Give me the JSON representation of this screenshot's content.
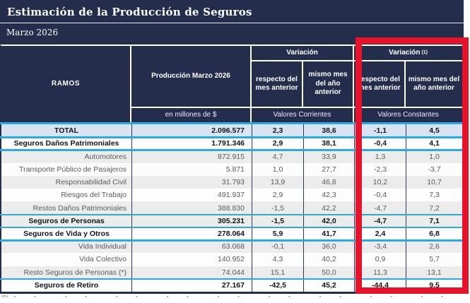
{
  "header": {
    "title": "Estimación de la Producción de Seguros",
    "subtitle": "Marzo 2026"
  },
  "table": {
    "columns": {
      "ramos": "RAMOS",
      "produccion": "Producción Marzo 2026",
      "variacion_corrientes": "Variación",
      "variacion_constantes": "Variación",
      "variacion_constantes_sup": "(1)",
      "respecto_mes_anterior": "respecto del mes anterior",
      "mismo_mes_anio_anterior": "mismo mes del año anterior",
      "unidad": "en millones de $",
      "valores_corrientes": "Valores Corrientes",
      "valores_constantes": "Valores Constantes"
    },
    "rows": [
      {
        "label": "TOTAL",
        "production": "2.096.577",
        "var_curr_prev": "2,3",
        "var_curr_yoy": "38,6",
        "var_const_prev": "-1,1",
        "var_const_yoy": "4,5",
        "style": "total",
        "shade": "blue",
        "separator_below": true
      },
      {
        "label": "Seguros Daños Patrimoniales",
        "production": "1.791.346",
        "var_curr_prev": "2,9",
        "var_curr_yoy": "38,1",
        "var_const_prev": "-0,4",
        "var_const_yoy": "4,1",
        "style": "group",
        "shade": "white",
        "separator_below": true
      },
      {
        "label": "Automotores",
        "production": "872.915",
        "var_curr_prev": "4,7",
        "var_curr_yoy": "33,9",
        "var_const_prev": "1,3",
        "var_const_yoy": "1,0",
        "style": "item",
        "shade": "gray",
        "separator_below": false
      },
      {
        "label": "Transporte Público de Pasajeros",
        "production": "5.871",
        "var_curr_prev": "1,0",
        "var_curr_yoy": "27,7",
        "var_const_prev": "-2,3",
        "var_const_yoy": "-3,7",
        "style": "item",
        "shade": "white",
        "separator_below": false
      },
      {
        "label": "Responsabilidad Civil",
        "production": "31.793",
        "var_curr_prev": "13,9",
        "var_curr_yoy": "46,8",
        "var_const_prev": "10,2",
        "var_const_yoy": "10,7",
        "style": "item",
        "shade": "gray",
        "separator_below": false
      },
      {
        "label": "Riesgos del Trabajo",
        "production": "491.937",
        "var_curr_prev": "2,9",
        "var_curr_yoy": "42,3",
        "var_const_prev": "-0,4",
        "var_const_yoy": "7,3",
        "style": "item",
        "shade": "white",
        "separator_below": false
      },
      {
        "label": "Restos Daños Patrimoniales",
        "production": "388.830",
        "var_curr_prev": "-1,5",
        "var_curr_yoy": "42,2",
        "var_const_prev": "-4,7",
        "var_const_yoy": "7,2",
        "style": "item",
        "shade": "gray",
        "separator_below": true
      },
      {
        "label": "Seguros de Personas",
        "production": "305.231",
        "var_curr_prev": "-1,5",
        "var_curr_yoy": "42,0",
        "var_const_prev": "-4,7",
        "var_const_yoy": "7,1",
        "style": "group",
        "shade": "gray",
        "separator_below": true
      },
      {
        "label": "Seguros de Vida y Otros",
        "production": "278.064",
        "var_curr_prev": "5,9",
        "var_curr_yoy": "41,7",
        "var_const_prev": "2,4",
        "var_const_yoy": "6,8",
        "style": "group",
        "shade": "white",
        "separator_below": true
      },
      {
        "label": "Vida Individual",
        "production": "63.068",
        "var_curr_prev": "-0,1",
        "var_curr_yoy": "36,0",
        "var_const_prev": "-3,4",
        "var_const_yoy": "2,6",
        "style": "item",
        "shade": "gray",
        "separator_below": false
      },
      {
        "label": "Vida Colectivo",
        "production": "140.952",
        "var_curr_prev": "4,3",
        "var_curr_yoy": "40,2",
        "var_const_prev": "0,9",
        "var_const_yoy": "5,7",
        "style": "item",
        "shade": "white",
        "separator_below": false
      },
      {
        "label": "Resto Seguros de Personas (*)",
        "production": "74.044",
        "var_curr_prev": "15,1",
        "var_curr_yoy": "50,0",
        "var_const_prev": "11,3",
        "var_const_yoy": "13,1",
        "style": "item",
        "shade": "gray",
        "separator_below": true
      },
      {
        "label": "Seguros de Retiro",
        "production": "27.167",
        "var_curr_prev": "-42,5",
        "var_curr_yoy": "45,2",
        "var_const_prev": "-44,4",
        "var_const_yoy": "9,5",
        "style": "group",
        "shade": "white",
        "separator_below": false
      }
    ]
  },
  "footnote": {
    "visible_fragment": "(1)"
  },
  "annotation": {
    "highlight_color": "#e8132b"
  },
  "colors": {
    "navy": "#252d4d",
    "cyan": "#29abe2",
    "total_row_bg": "#d8e4f1",
    "stripe_gray": "#ececec",
    "highlight_red": "#e8132b"
  }
}
